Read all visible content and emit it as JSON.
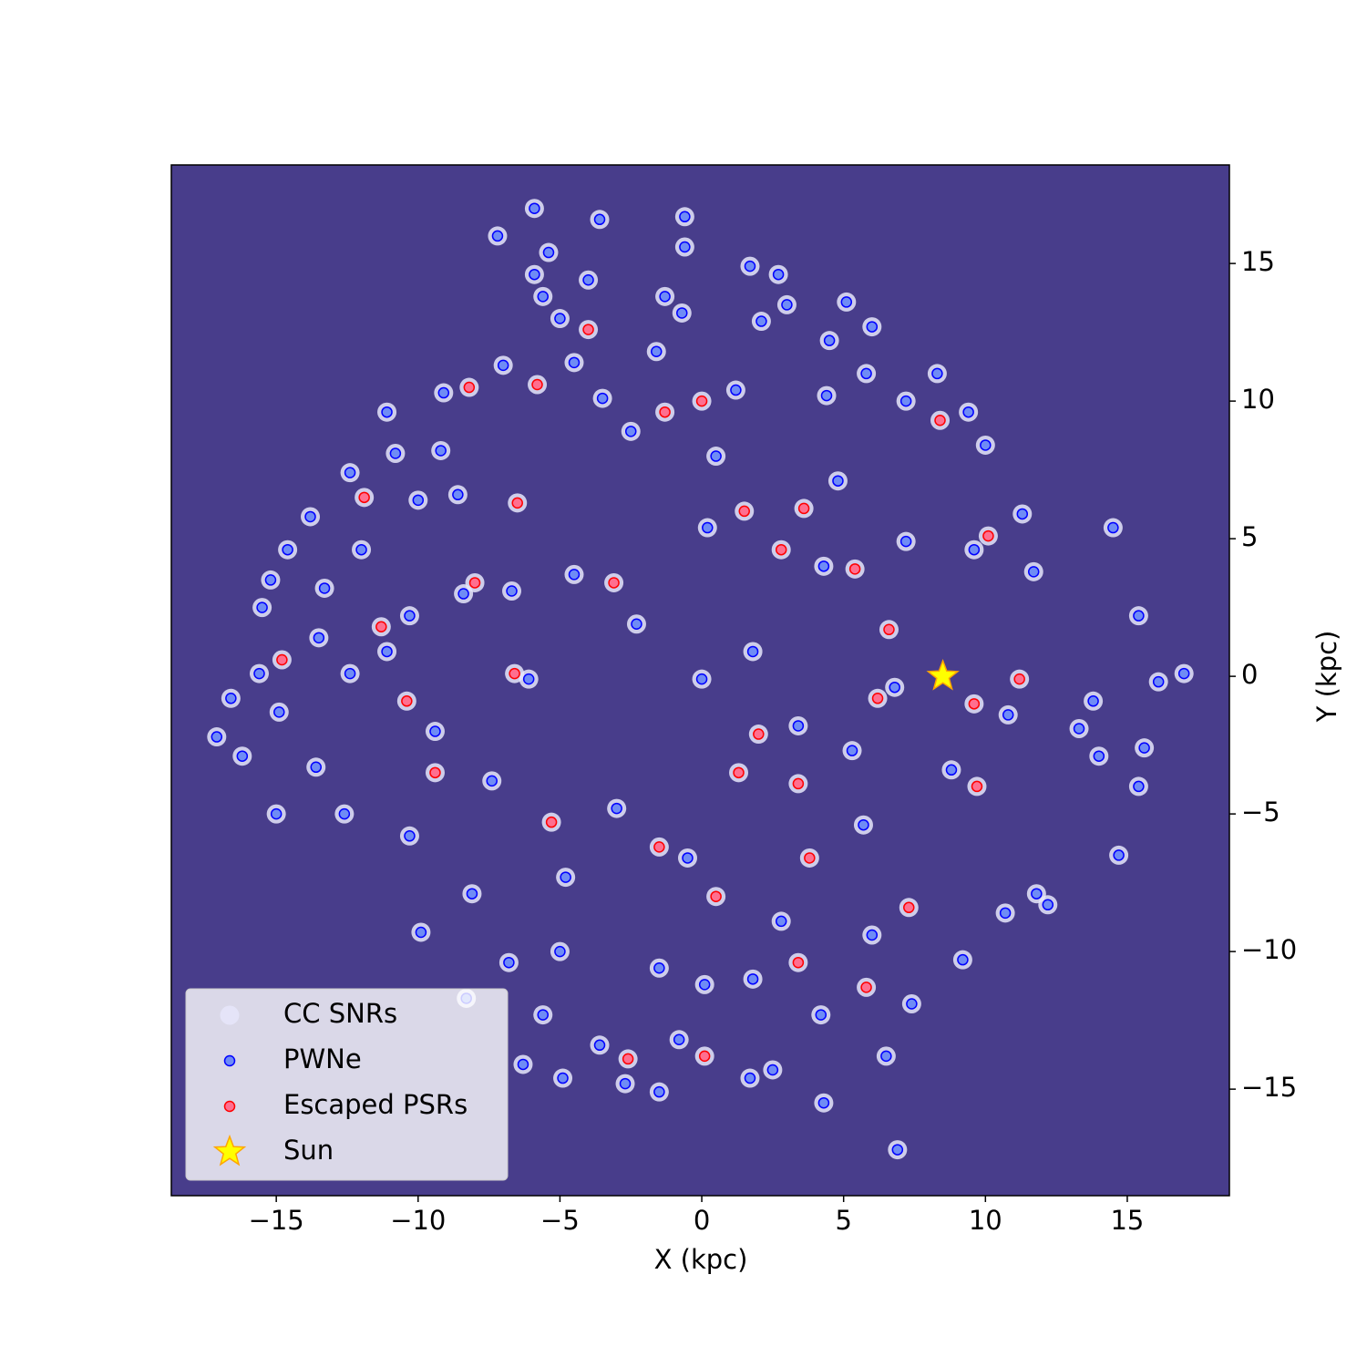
{
  "chart_data": {
    "type": "scatter",
    "xlabel": "X (kpc)",
    "ylabel": "Y (kpc)",
    "xlim": [
      -18.7,
      18.6
    ],
    "ylim": [
      -18.87,
      18.58
    ],
    "xticks": [
      {
        "value": -15,
        "label": "−15"
      },
      {
        "value": -10,
        "label": "−10"
      },
      {
        "value": -5,
        "label": "−5"
      },
      0,
      5,
      10,
      15
    ],
    "yticks": [
      {
        "value": -15,
        "label": "−15"
      },
      {
        "value": -10,
        "label": "−10"
      },
      {
        "value": -5,
        "label": "−5"
      },
      0,
      5,
      10,
      15
    ],
    "background": "#483d8b",
    "legend_loc": "lower left",
    "series": [
      {
        "name": "CC SNRs",
        "marker": "circle",
        "color": "#e6e6fa",
        "edgecolor": "#e6e6fa",
        "x": [
          -5.9,
          -3.6,
          -0.6,
          -7.2,
          -5.4,
          -0.6,
          1.7,
          2.7,
          -5.9,
          -4.0,
          -1.3,
          -5.6,
          3.0,
          5.1,
          -0.7,
          -5.0,
          2.1,
          6.0,
          4.5,
          -1.6,
          -4.5,
          -7.0,
          5.8,
          8.3,
          -9.1,
          4.4,
          7.2,
          9.4,
          -11.1,
          -9.2,
          -10.8,
          10.0,
          -12.4,
          -8.6,
          -10.0,
          -13.8,
          11.3,
          14.5,
          -14.6,
          -12.0,
          -15.2,
          11.7,
          -13.3,
          -15.5,
          15.4,
          -13.5,
          -11.1,
          -12.4,
          -15.6,
          17.0,
          16.1,
          -16.6,
          -17.1,
          -14.9,
          -16.2,
          -13.6,
          15.6,
          14.0,
          13.3,
          13.8,
          -15.0,
          -12.6,
          15.4,
          14.7,
          12.2,
          -8.1,
          -9.9,
          -5.0,
          -6.8,
          -8.3,
          -5.6,
          -6.3,
          -3.6,
          -4.9,
          -2.7,
          -1.5,
          1.7,
          2.5,
          4.3,
          6.9,
          6.5,
          4.2,
          7.4,
          -0.8,
          0.1,
          1.8,
          9.2,
          10.7,
          11.8,
          0.0,
          1.8,
          -2.3,
          3.4,
          -3.0,
          4.3,
          -4.5,
          0.2,
          5.3,
          -6.1,
          -0.5,
          5.7,
          -6.7,
          6.8,
          7.2,
          -7.4,
          4.8,
          -4.8,
          0.5,
          -8.4,
          8.8,
          -2.5,
          2.8,
          -9.4,
          9.6,
          6.0,
          -10.3,
          1.2,
          -1.5,
          10.8,
          -3.5,
          -10.3,
          -4.0,
          -8.2,
          -1.3,
          0.0,
          -5.8,
          8.4,
          -11.9,
          3.6,
          -6.5,
          10.1,
          -8.0,
          2.8,
          5.4,
          -11.3,
          6.6,
          11.2,
          -6.6,
          6.2,
          -10.4,
          9.6,
          -9.4,
          3.4,
          1.3,
          -5.3,
          9.7,
          -1.5,
          3.8,
          7.3,
          0.5,
          -2.6,
          0.1,
          3.4,
          5.8,
          -14.8,
          -3.1,
          2.0,
          1.5
        ],
        "y": [
          17.0,
          16.6,
          16.7,
          16.0,
          15.4,
          15.6,
          14.9,
          14.6,
          14.6,
          14.4,
          13.8,
          13.8,
          13.5,
          13.6,
          13.2,
          13.0,
          12.9,
          12.7,
          12.2,
          11.8,
          11.4,
          11.3,
          11.0,
          11.0,
          10.3,
          10.2,
          10.0,
          9.6,
          9.6,
          8.2,
          8.1,
          8.4,
          7.4,
          6.6,
          6.4,
          5.8,
          5.9,
          5.4,
          4.6,
          4.6,
          3.5,
          3.8,
          3.2,
          2.5,
          2.2,
          1.4,
          0.9,
          0.1,
          0.1,
          0.1,
          -0.2,
          -0.8,
          -2.2,
          -1.3,
          -2.9,
          -3.3,
          -2.6,
          -2.9,
          -1.9,
          -0.9,
          -5.0,
          -5.0,
          -4.0,
          -6.5,
          -8.3,
          -7.9,
          -9.3,
          -10.0,
          -10.4,
          -11.7,
          -12.3,
          -14.1,
          -13.4,
          -14.6,
          -14.8,
          -15.1,
          -14.6,
          -14.3,
          -15.5,
          -17.2,
          -13.8,
          -12.3,
          -11.9,
          -13.2,
          -11.2,
          -11.0,
          -10.3,
          -8.6,
          -7.9,
          -0.1,
          0.9,
          1.9,
          -1.8,
          -4.8,
          4.0,
          3.7,
          5.4,
          -2.7,
          -0.1,
          -6.6,
          -5.4,
          3.1,
          -0.4,
          4.9,
          -3.8,
          7.1,
          -7.3,
          8.0,
          3.0,
          -3.4,
          8.9,
          -8.9,
          -2.0,
          4.6,
          -9.4,
          2.2,
          10.4,
          -10.6,
          -1.4,
          10.1,
          -5.8,
          12.6,
          10.5,
          9.6,
          10.0,
          10.6,
          9.3,
          6.5,
          6.1,
          6.3,
          5.1,
          3.4,
          4.6,
          3.9,
          1.8,
          1.7,
          -0.1,
          0.1,
          -0.8,
          -0.9,
          -1.0,
          -3.5,
          -3.9,
          -3.5,
          -5.3,
          -4.0,
          -6.2,
          -6.6,
          -8.4,
          -8.0,
          -13.9,
          -13.8,
          -10.4,
          -11.3,
          0.6,
          3.4,
          -2.1,
          6.0
        ]
      },
      {
        "name": "PWNe",
        "marker": "circle",
        "color": "#6f8cf5",
        "edgecolor": "#0000ff",
        "x": [
          -5.9,
          -3.6,
          -0.6,
          -7.2,
          -5.4,
          -0.6,
          1.7,
          2.7,
          -5.9,
          -4.0,
          -1.3,
          -5.6,
          3.0,
          5.1,
          -0.7,
          -5.0,
          2.1,
          6.0,
          4.5,
          -1.6,
          -4.5,
          -7.0,
          5.8,
          8.3,
          -9.1,
          4.4,
          7.2,
          9.4,
          -11.1,
          -9.2,
          -10.8,
          10.0,
          -12.4,
          -8.6,
          -10.0,
          -13.8,
          11.3,
          14.5,
          -14.6,
          -12.0,
          -15.2,
          11.7,
          -13.3,
          -15.5,
          15.4,
          -13.5,
          -11.1,
          -12.4,
          -15.6,
          17.0,
          16.1,
          -16.6,
          -17.1,
          -14.9,
          -16.2,
          -13.6,
          15.6,
          14.0,
          13.3,
          13.8,
          -15.0,
          -12.6,
          15.4,
          14.7,
          12.2,
          -8.1,
          -9.9,
          -5.0,
          -6.8,
          -8.3,
          -5.6,
          -6.3,
          -3.6,
          -4.9,
          -2.7,
          -1.5,
          1.7,
          2.5,
          4.3,
          6.9,
          6.5,
          4.2,
          7.4,
          -0.8,
          0.1,
          1.8,
          9.2,
          10.7,
          11.8,
          0.0,
          1.8,
          -2.3,
          3.4,
          -3.0,
          4.3,
          -4.5,
          0.2,
          5.3,
          -6.1,
          -0.5,
          5.7,
          -6.7,
          6.8,
          7.2,
          -7.4,
          4.8,
          -4.8,
          0.5,
          -8.4,
          8.8,
          -2.5,
          2.8,
          -9.4,
          9.6,
          6.0,
          -10.3,
          1.2,
          -1.5,
          10.8,
          -3.5,
          -10.3
        ],
        "y": [
          17.0,
          16.6,
          16.7,
          16.0,
          15.4,
          15.6,
          14.9,
          14.6,
          14.6,
          14.4,
          13.8,
          13.8,
          13.5,
          13.6,
          13.2,
          13.0,
          12.9,
          12.7,
          12.2,
          11.8,
          11.4,
          11.3,
          11.0,
          11.0,
          10.3,
          10.2,
          10.0,
          9.6,
          9.6,
          8.2,
          8.1,
          8.4,
          7.4,
          6.6,
          6.4,
          5.8,
          5.9,
          5.4,
          4.6,
          4.6,
          3.5,
          3.8,
          3.2,
          2.5,
          2.2,
          1.4,
          0.9,
          0.1,
          0.1,
          0.1,
          -0.2,
          -0.8,
          -2.2,
          -1.3,
          -2.9,
          -3.3,
          -2.6,
          -2.9,
          -1.9,
          -0.9,
          -5.0,
          -5.0,
          -4.0,
          -6.5,
          -8.3,
          -7.9,
          -9.3,
          -10.0,
          -10.4,
          -11.7,
          -12.3,
          -14.1,
          -13.4,
          -14.6,
          -14.8,
          -15.1,
          -14.6,
          -14.3,
          -15.5,
          -17.2,
          -13.8,
          -12.3,
          -11.9,
          -13.2,
          -11.2,
          -11.0,
          -10.3,
          -8.6,
          -7.9,
          -0.1,
          0.9,
          1.9,
          -1.8,
          -4.8,
          4.0,
          3.7,
          5.4,
          -2.7,
          -0.1,
          -6.6,
          -5.4,
          3.1,
          -0.4,
          4.9,
          -3.8,
          7.1,
          -7.3,
          8.0,
          3.0,
          -3.4,
          8.9,
          -8.9,
          -2.0,
          4.6,
          -9.4,
          2.2,
          10.4,
          -10.6,
          -1.4,
          10.1,
          -5.8
        ]
      },
      {
        "name": "Escaped PSRs",
        "marker": "circle",
        "color": "#ff6f8f",
        "edgecolor": "#ff0000",
        "x": [
          -4.0,
          -8.2,
          -1.3,
          0.0,
          -5.8,
          8.4,
          -11.9,
          3.6,
          -6.5,
          10.1,
          -8.0,
          2.8,
          5.4,
          -11.3,
          6.6,
          11.2,
          -6.6,
          6.2,
          -10.4,
          9.6,
          -9.4,
          3.4,
          1.3,
          -5.3,
          9.7,
          -1.5,
          3.8,
          7.3,
          0.5,
          -2.6,
          0.1,
          3.4,
          5.8,
          -14.8,
          -3.1,
          2.0,
          1.5
        ],
        "y": [
          12.6,
          10.5,
          9.6,
          10.0,
          10.6,
          9.3,
          6.5,
          6.1,
          6.3,
          5.1,
          3.4,
          4.6,
          3.9,
          1.8,
          1.7,
          -0.1,
          0.1,
          -0.8,
          -0.9,
          -1.0,
          -3.5,
          -3.9,
          -3.5,
          -5.3,
          -4.0,
          -6.2,
          -6.6,
          -8.4,
          -8.0,
          -13.9,
          -13.8,
          -10.4,
          -11.3,
          0.6,
          3.4,
          -2.1,
          6.0
        ]
      },
      {
        "name": "Sun",
        "marker": "star",
        "color": "#ffff00",
        "edgecolor": "#ffa500",
        "x": [
          8.5
        ],
        "y": [
          0
        ]
      }
    ]
  }
}
